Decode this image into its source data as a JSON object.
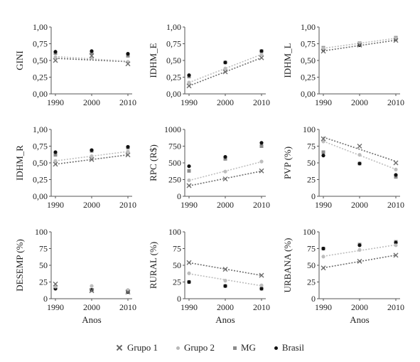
{
  "colors": {
    "grupo1": "#6e6e6e",
    "grupo2": "#bdbdbd",
    "mg": "#8c8c8c",
    "brasil": "#111111"
  },
  "legend": [
    {
      "key": "grupo1",
      "label": "Grupo 1",
      "icon": "x-marker"
    },
    {
      "key": "grupo2",
      "label": "Grupo 2",
      "icon": "light-dot-marker"
    },
    {
      "key": "mg",
      "label": "MG",
      "icon": "square-marker"
    },
    {
      "key": "brasil",
      "label": "Brasil",
      "icon": "dark-dot-marker"
    }
  ],
  "chart_data": [
    {
      "type": "scatter",
      "ylabel": "GINI",
      "xlabel": "",
      "x": [
        1990,
        2000,
        2010
      ],
      "ylim": [
        0,
        1
      ],
      "yticks": [
        "0,00",
        "0,25",
        "0,50",
        "0,75",
        "1,00"
      ],
      "ytickvals": [
        0,
        0.25,
        0.5,
        0.75,
        1
      ],
      "xticks": [
        "1990",
        "2000",
        "2010"
      ],
      "series": [
        {
          "key": "grupo1",
          "values": [
            0.5,
            0.57,
            0.45
          ]
        },
        {
          "key": "grupo2",
          "values": [
            0.55,
            0.54,
            0.48
          ]
        },
        {
          "key": "mg",
          "values": [
            0.61,
            0.61,
            0.57
          ]
        },
        {
          "key": "brasil",
          "values": [
            0.63,
            0.64,
            0.6
          ]
        }
      ],
      "trendlines": [
        "grupo1",
        "grupo2"
      ]
    },
    {
      "type": "scatter",
      "ylabel": "IDHM_E",
      "xlabel": "",
      "x": [
        1990,
        2000,
        2010
      ],
      "ylim": [
        0,
        1
      ],
      "yticks": [
        "0,00",
        "0,25",
        "0,50",
        "0,75",
        "1,00"
      ],
      "ytickvals": [
        0,
        0.25,
        0.5,
        0.75,
        1
      ],
      "xticks": [
        "1990",
        "2000",
        "2010"
      ],
      "series": [
        {
          "key": "grupo1",
          "values": [
            0.12,
            0.33,
            0.54
          ]
        },
        {
          "key": "grupo2",
          "values": [
            0.17,
            0.38,
            0.59
          ]
        },
        {
          "key": "mg",
          "values": [
            0.26,
            0.47,
            0.64
          ]
        },
        {
          "key": "brasil",
          "values": [
            0.28,
            0.47,
            0.64
          ]
        }
      ],
      "trendlines": [
        "grupo1",
        "grupo2"
      ]
    },
    {
      "type": "scatter",
      "ylabel": "IDHM_L",
      "xlabel": "",
      "x": [
        1990,
        2000,
        2010
      ],
      "ylim": [
        0,
        1
      ],
      "yticks": [
        "0,00",
        "0,25",
        "0,50",
        "0,75",
        "1,00"
      ],
      "ytickvals": [
        0,
        0.25,
        0.5,
        0.75,
        1
      ],
      "xticks": [
        "1990",
        "2000",
        "2010"
      ],
      "series": [
        {
          "key": "grupo1",
          "values": [
            0.64,
            0.73,
            0.8
          ]
        },
        {
          "key": "grupo2",
          "values": [
            0.68,
            0.76,
            0.83
          ]
        },
        {
          "key": "mg",
          "values": [
            0.69,
            0.76,
            0.84
          ]
        },
        {
          "key": "brasil",
          "values": [
            0.66,
            0.73,
            0.82
          ]
        }
      ],
      "trendlines": [
        "grupo1",
        "grupo2"
      ]
    },
    {
      "type": "scatter",
      "ylabel": "IDHM_R",
      "xlabel": "",
      "x": [
        1990,
        2000,
        2010
      ],
      "ylim": [
        0,
        1
      ],
      "yticks": [
        "0,00",
        "0,25",
        "0,50",
        "0,75",
        "1,00"
      ],
      "ytickvals": [
        0,
        0.25,
        0.5,
        0.75,
        1
      ],
      "xticks": [
        "1990",
        "2000",
        "2010"
      ],
      "series": [
        {
          "key": "grupo1",
          "values": [
            0.48,
            0.55,
            0.62
          ]
        },
        {
          "key": "grupo2",
          "values": [
            0.53,
            0.6,
            0.67
          ]
        },
        {
          "key": "mg",
          "values": [
            0.62,
            0.68,
            0.73
          ]
        },
        {
          "key": "brasil",
          "values": [
            0.66,
            0.69,
            0.74
          ]
        }
      ],
      "trendlines": [
        "grupo1",
        "grupo2"
      ]
    },
    {
      "type": "scatter",
      "ylabel": "RPC (R$)",
      "xlabel": "",
      "x": [
        1990,
        2000,
        2010
      ],
      "ylim": [
        0,
        1000
      ],
      "yticks": [
        "0",
        "250",
        "500",
        "750",
        "1000"
      ],
      "ytickvals": [
        0,
        250,
        500,
        750,
        1000
      ],
      "xticks": [
        "1990",
        "2000",
        "2010"
      ],
      "series": [
        {
          "key": "grupo1",
          "values": [
            160,
            260,
            380
          ]
        },
        {
          "key": "grupo2",
          "values": [
            240,
            370,
            520
          ]
        },
        {
          "key": "mg",
          "values": [
            380,
            560,
            750
          ]
        },
        {
          "key": "brasil",
          "values": [
            450,
            590,
            800
          ]
        }
      ],
      "trendlines": [
        "grupo1",
        "grupo2"
      ]
    },
    {
      "type": "scatter",
      "ylabel": "PVP (%)",
      "xlabel": "",
      "x": [
        1990,
        2000,
        2010
      ],
      "ylim": [
        0,
        100
      ],
      "yticks": [
        "0",
        "25",
        "50",
        "75",
        "100"
      ],
      "ytickvals": [
        0,
        25,
        50,
        75,
        100
      ],
      "xticks": [
        "1990",
        "2000",
        "2010"
      ],
      "series": [
        {
          "key": "grupo1",
          "values": [
            86,
            75,
            50
          ]
        },
        {
          "key": "grupo2",
          "values": [
            82,
            62,
            40
          ]
        },
        {
          "key": "mg",
          "values": [
            66,
            49,
            29
          ]
        },
        {
          "key": "brasil",
          "values": [
            61,
            49,
            32
          ]
        }
      ],
      "trendlines": [
        "grupo1",
        "grupo2"
      ]
    },
    {
      "type": "scatter",
      "ylabel": "DESEMP (%)",
      "xlabel": "Anos",
      "x": [
        1990,
        2000,
        2010
      ],
      "ylim": [
        0,
        100
      ],
      "yticks": [
        "0",
        "25",
        "50",
        "75",
        "100"
      ],
      "ytickvals": [
        0,
        25,
        50,
        75,
        100
      ],
      "xticks": [
        "1990",
        "2000",
        "2010"
      ],
      "series": [
        {
          "key": "grupo1",
          "values": [
            22,
            12,
            10
          ]
        },
        {
          "key": "grupo2",
          "values": [
            18,
            19,
            13
          ]
        },
        {
          "key": "mg",
          "values": [
            16,
            13,
            11
          ]
        },
        {
          "key": "brasil",
          "values": [
            15,
            13,
            10
          ]
        }
      ],
      "trendlines": []
    },
    {
      "type": "scatter",
      "ylabel": "RURAL (%)",
      "xlabel": "Anos",
      "x": [
        1990,
        2000,
        2010
      ],
      "ylim": [
        0,
        100
      ],
      "yticks": [
        "0",
        "25",
        "50",
        "75",
        "100"
      ],
      "ytickvals": [
        0,
        25,
        50,
        75,
        100
      ],
      "xticks": [
        "1990",
        "2000",
        "2010"
      ],
      "series": [
        {
          "key": "grupo1",
          "values": [
            54,
            44,
            35
          ]
        },
        {
          "key": "grupo2",
          "values": [
            38,
            27,
            20
          ]
        },
        {
          "key": "mg",
          "values": [
            25,
            19,
            15
          ]
        },
        {
          "key": "brasil",
          "values": [
            25,
            19,
            15
          ]
        }
      ],
      "trendlines": [
        "grupo1",
        "grupo2"
      ]
    },
    {
      "type": "scatter",
      "ylabel": "URBANA (%)",
      "xlabel": "Anos",
      "x": [
        1990,
        2000,
        2010
      ],
      "ylim": [
        0,
        100
      ],
      "yticks": [
        "0",
        "25",
        "50",
        "75",
        "100"
      ],
      "ytickvals": [
        0,
        25,
        50,
        75,
        100
      ],
      "xticks": [
        "1990",
        "2000",
        "2010"
      ],
      "series": [
        {
          "key": "grupo1",
          "values": [
            46,
            56,
            65
          ]
        },
        {
          "key": "grupo2",
          "values": [
            63,
            73,
            80
          ]
        },
        {
          "key": "mg",
          "values": [
            75,
            81,
            85
          ]
        },
        {
          "key": "brasil",
          "values": [
            75,
            80,
            84
          ]
        }
      ],
      "trendlines": [
        "grupo1",
        "grupo2"
      ]
    }
  ]
}
